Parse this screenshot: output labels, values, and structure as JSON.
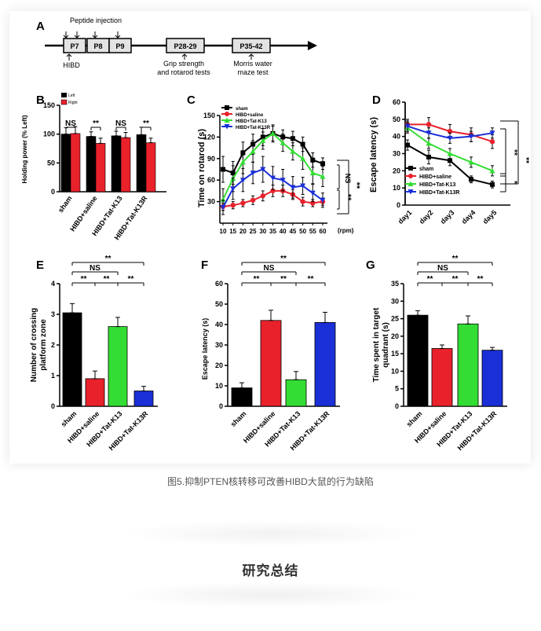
{
  "caption": "图5.抑制PTEN核转移可改善HIBD大鼠的行为缺陷",
  "section_title": "研究总结",
  "colors": {
    "sham": "#000000",
    "saline": "#e8212b",
    "k13": "#33dd33",
    "k13r": "#1a2fd6"
  },
  "timeline": {
    "panel_letter": "A",
    "top_label": "Peptide injection",
    "boxes": [
      "P7",
      "P8",
      "P9",
      "P28-29",
      "P35-42"
    ],
    "hibd_label": "HIBD",
    "grip_label_1": "Grip strength",
    "grip_label_2": "and rotarod tests",
    "morris_label_1": "Morris water",
    "morris_label_2": "maze test"
  },
  "chart_data": [
    {
      "panel": "B",
      "type": "bar",
      "ylabel": "Holding power (% Left)",
      "ylim": [
        0,
        150
      ],
      "yticks": [
        "0",
        "50",
        "100",
        "150"
      ],
      "categories": [
        "sham",
        "HIBD+saline",
        "HIBD+Tat-K13",
        "HIBD+Tat-K13R"
      ],
      "legend": [
        "Left",
        "Right"
      ],
      "series": [
        {
          "name": "Left",
          "values": [
            100,
            96,
            97,
            99
          ],
          "errors": [
            11,
            8,
            8,
            13
          ]
        },
        {
          "name": "Right",
          "values": [
            101,
            84,
            94,
            85
          ],
          "errors": [
            12,
            9,
            9,
            8
          ]
        }
      ],
      "significance": [
        "NS",
        "**",
        "NS",
        "**"
      ]
    },
    {
      "panel": "C",
      "type": "line",
      "ylabel": "Time on rotarod (s)",
      "x_unit": "(rpm)",
      "ylim": [
        0,
        150
      ],
      "yticks": [
        "30",
        "60",
        "90",
        "120",
        "150"
      ],
      "x": [
        "10",
        "15",
        "20",
        "25",
        "30",
        "35",
        "40",
        "45",
        "50",
        "55",
        "60"
      ],
      "series": [
        {
          "name": "sham",
          "values": [
            75,
            70,
            98,
            110,
            120,
            125,
            120,
            118,
            110,
            88,
            83
          ],
          "errors": [
            18,
            16,
            15,
            14,
            12,
            10,
            10,
            10,
            10,
            10,
            8
          ]
        },
        {
          "name": "HIBD+saline",
          "values": [
            23,
            25,
            28,
            32,
            38,
            45,
            45,
            40,
            30,
            28,
            30
          ],
          "errors": [
            5,
            5,
            5,
            6,
            7,
            8,
            8,
            7,
            6,
            5,
            5
          ]
        },
        {
          "name": "HIBD+Tat-K13",
          "values": [
            33,
            62,
            85,
            100,
            115,
            125,
            112,
            100,
            90,
            70,
            65
          ],
          "errors": [
            15,
            18,
            16,
            15,
            12,
            12,
            12,
            12,
            15,
            15,
            14
          ]
        },
        {
          "name": "HIBD+Tat-K13R",
          "values": [
            22,
            48,
            60,
            70,
            75,
            63,
            60,
            50,
            52,
            42,
            32
          ],
          "errors": [
            10,
            15,
            16,
            15,
            18,
            16,
            15,
            15,
            12,
            12,
            10
          ]
        }
      ],
      "significance": [
        "NS",
        "**",
        "**"
      ]
    },
    {
      "panel": "D",
      "type": "line",
      "ylabel": "Escape latency (s)",
      "ylim": [
        0,
        60
      ],
      "yticks": [
        "0",
        "10",
        "20",
        "30",
        "40",
        "50",
        "60"
      ],
      "x": [
        "day1",
        "day2",
        "day3",
        "day4",
        "day5"
      ],
      "series": [
        {
          "name": "sham",
          "values": [
            35,
            28,
            26,
            15,
            12
          ],
          "errors": [
            3,
            4,
            3,
            2,
            2
          ]
        },
        {
          "name": "HIBD+saline",
          "values": [
            47,
            47,
            43,
            41,
            37
          ],
          "errors": [
            3,
            4,
            4,
            4,
            4
          ]
        },
        {
          "name": "HIBD+Tat-K13",
          "values": [
            45,
            36,
            30,
            25,
            20
          ],
          "errors": [
            3,
            3,
            3,
            3,
            3
          ]
        },
        {
          "name": "HIBD+Tat-K13R",
          "values": [
            46,
            42,
            39,
            40,
            42
          ],
          "errors": [
            3,
            3,
            3,
            3,
            3
          ]
        }
      ],
      "significance": [
        "**",
        "**",
        "*"
      ]
    },
    {
      "panel": "E",
      "type": "bar",
      "ylabel": "Number of crossing platform zone",
      "ylim": [
        0,
        4
      ],
      "yticks": [
        "0",
        "1",
        "2",
        "3",
        "4"
      ],
      "categories": [
        "sham",
        "HIBD+saline",
        "HIBD+Tat-K13",
        "HIBD+Tat-K13R"
      ],
      "values": [
        3.05,
        0.9,
        2.6,
        0.5
      ],
      "errors": [
        0.3,
        0.25,
        0.3,
        0.15
      ],
      "brackets": [
        "**",
        "NS",
        "**",
        "**",
        "**"
      ]
    },
    {
      "panel": "F",
      "type": "bar",
      "ylabel": "Escape latency (s)",
      "ylim": [
        0,
        60
      ],
      "yticks": [
        "0",
        "10",
        "20",
        "30",
        "40",
        "50",
        "60"
      ],
      "categories": [
        "sham",
        "HIBD+saline",
        "HIBD+Tat-K13",
        "HIBD+Tat-K13R"
      ],
      "values": [
        9,
        42,
        13,
        41
      ],
      "errors": [
        2.5,
        5,
        4,
        5
      ],
      "brackets": [
        "**",
        "NS",
        "**",
        "**",
        "**"
      ]
    },
    {
      "panel": "G",
      "type": "bar",
      "ylabel": "Time spent in target quadrant (s)",
      "ylim": [
        0,
        35
      ],
      "yticks": [
        "0",
        "5",
        "10",
        "15",
        "20",
        "25",
        "30",
        "35"
      ],
      "categories": [
        "sham",
        "HIBD+saline",
        "HIBD+Tat-K13",
        "HIBD+Tat-K13R"
      ],
      "values": [
        26,
        16.5,
        23.5,
        16
      ],
      "errors": [
        1.3,
        1,
        2.3,
        0.8
      ],
      "brackets": [
        "**",
        "NS",
        "**",
        "**",
        "**"
      ]
    }
  ]
}
